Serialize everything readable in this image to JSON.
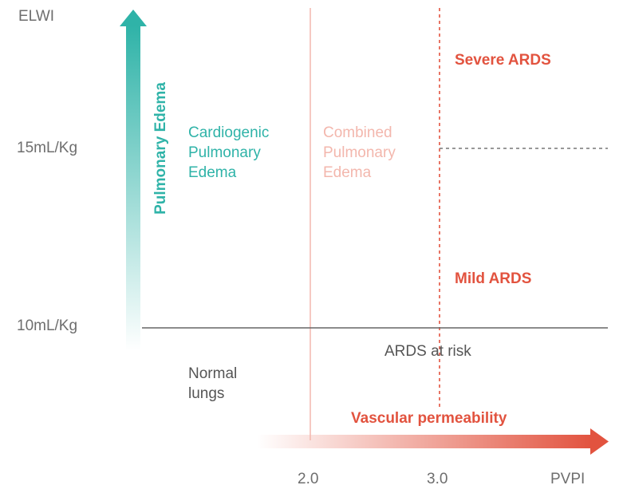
{
  "axes": {
    "y_label": "ELWI",
    "y_ticks": [
      "15mL/Kg",
      "10mL/Kg"
    ],
    "x_label": "PVPI",
    "x_ticks": [
      "2.0",
      "3.0"
    ],
    "y_arrow_label": "Pulmonary Edema",
    "x_arrow_label": "Vascular permeability"
  },
  "regions": {
    "cardiogenic": [
      "Cardiogenic",
      "Pulmonary",
      "Edema"
    ],
    "combined": [
      "Combined",
      "Pulmonary",
      "Edema"
    ],
    "severe": "Severe ARDS",
    "mild": "Mild ARDS",
    "at_risk": "ARDS at risk",
    "normal": [
      "Normal",
      "lungs"
    ]
  },
  "colors": {
    "teal": "#2fb3a8",
    "red": "#e2533f",
    "pink": "#f3b7ad",
    "gray": "#555555"
  }
}
